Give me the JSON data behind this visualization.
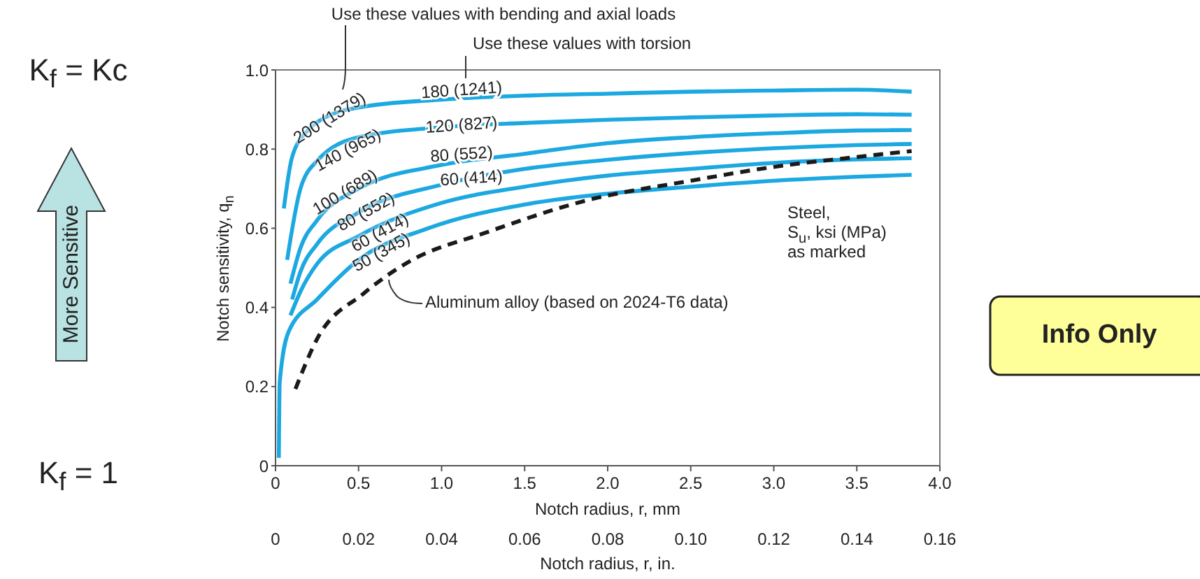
{
  "chart_data": {
    "type": "line",
    "xlabel": "Notch radius, r, mm",
    "x2label": "Notch radius, r,  in.",
    "ylabel": "Notch sensitivity, q$_{n}$",
    "xlim": [
      0,
      4
    ],
    "xticks": [
      0,
      0.5,
      {
        "value": 1,
        "label": "1.0"
      },
      1.5,
      {
        "value": 2,
        "label": "2.0"
      },
      2.5,
      {
        "value": 3,
        "label": "3.0"
      },
      3.5,
      {
        "value": 4,
        "label": "4.0"
      }
    ],
    "x2lim": [
      0,
      0.16
    ],
    "x2ticks": [
      0,
      0.02,
      0.04,
      0.06,
      0.08,
      {
        "value": 0.1,
        "label": "0.10"
      },
      0.12,
      0.14,
      0.16
    ],
    "ylim": [
      0,
      1
    ],
    "yticks": [
      0,
      0.2,
      0.4,
      0.6,
      0.8,
      {
        "value": 1,
        "label": "1.0"
      }
    ],
    "marker": "none",
    "series": [
      {
        "name": "200 (1379)",
        "color": "#1ca8e0",
        "x": [
          0.05,
          0.1,
          0.2,
          0.3,
          0.5,
          1.0,
          1.5,
          2.0,
          2.5,
          3.0,
          3.5,
          3.83
        ],
        "values": [
          0.65,
          0.78,
          0.85,
          0.88,
          0.905,
          0.925,
          0.935,
          0.94,
          0.945,
          0.948,
          0.95,
          0.945
        ]
      },
      {
        "name": "140 (965)",
        "color": "#1ca8e0",
        "x": [
          0.07,
          0.15,
          0.25,
          0.5,
          1.0,
          1.5,
          2.0,
          2.5,
          3.0,
          3.5,
          3.83
        ],
        "values": [
          0.52,
          0.7,
          0.77,
          0.83,
          0.855,
          0.866,
          0.874,
          0.88,
          0.885,
          0.888,
          0.887
        ]
      },
      {
        "name": "100 (689)",
        "color": "#1ca8e0",
        "x": [
          0.09,
          0.15,
          0.25,
          0.5,
          1.0,
          1.5,
          2.0,
          2.5,
          3.0,
          3.5,
          3.83
        ],
        "values": [
          0.46,
          0.55,
          0.62,
          0.7,
          0.76,
          0.788,
          0.815,
          0.83,
          0.84,
          0.847,
          0.848
        ]
      },
      {
        "name": "80 (552)",
        "color": "#1ca8e0",
        "x": [
          0.1,
          0.15,
          0.25,
          0.5,
          1.0,
          1.5,
          2.0,
          2.5,
          3.0,
          3.5,
          3.83
        ],
        "values": [
          0.42,
          0.49,
          0.56,
          0.64,
          0.71,
          0.75,
          0.773,
          0.79,
          0.802,
          0.81,
          0.813
        ]
      },
      {
        "name": "60 (414)",
        "color": "#1ca8e0",
        "x": [
          0.09,
          0.15,
          0.25,
          0.5,
          1.0,
          1.5,
          2.0,
          2.5,
          3.0,
          3.5,
          3.83
        ],
        "values": [
          0.38,
          0.44,
          0.51,
          0.58,
          0.664,
          0.705,
          0.733,
          0.75,
          0.765,
          0.774,
          0.777
        ]
      },
      {
        "name": "50 (345)",
        "color": "#1ca8e0",
        "x": [
          0.02,
          0.025,
          0.08,
          0.25,
          0.5,
          0.92,
          1.5,
          1.88,
          2.5,
          3.0,
          3.5,
          3.83
        ],
        "values": [
          0.02,
          0.21,
          0.34,
          0.42,
          0.52,
          0.6,
          0.66,
          0.682,
          0.705,
          0.72,
          0.73,
          0.735
        ]
      },
      {
        "name": "Aluminum alloy (based on 2024-T6 data)",
        "color": "#1a1a1a",
        "line_style": "dashed",
        "x": [
          0.12,
          0.25,
          0.53,
          0.81,
          1.26,
          1.88,
          2.5,
          3.0,
          3.5,
          3.83
        ],
        "values": [
          0.194,
          0.32,
          0.435,
          0.517,
          0.588,
          0.671,
          0.72,
          0.755,
          0.78,
          0.795
        ]
      }
    ],
    "annotations": [
      "Use these values with bending and axial loads",
      "Use these values with torsion",
      "180 (1241)",
      "120 (827)",
      "80 (552)",
      "60 (414)",
      "Steel,",
      "S$_{u}$, ksi (MPa)",
      "as marked",
      "K$_{f}$ = Kc",
      "K$_{f}$ = 1",
      "More Sensitive",
      "Info Only"
    ]
  }
}
